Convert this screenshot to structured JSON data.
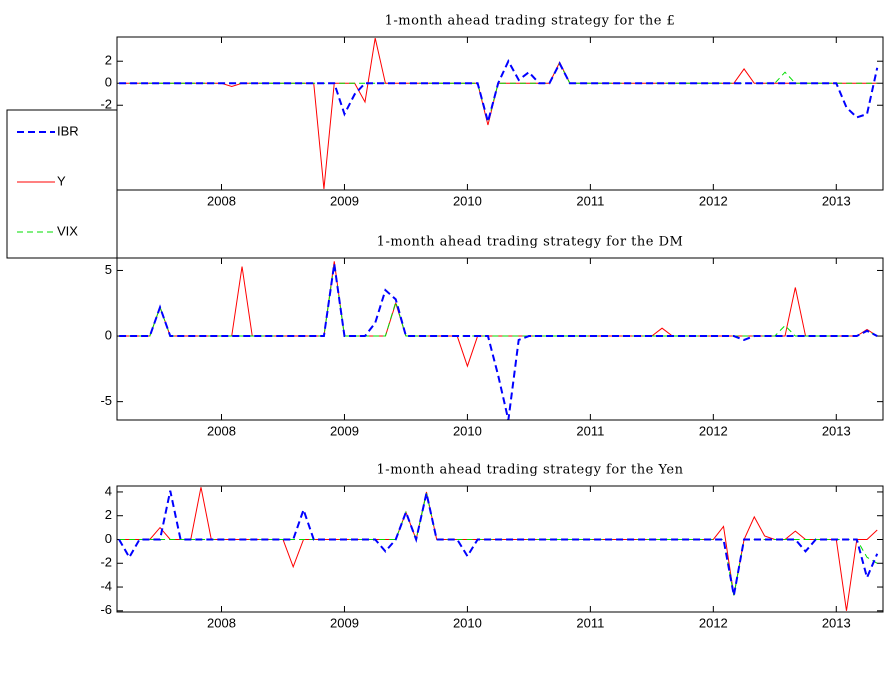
{
  "chart_data": [
    {
      "type": "line",
      "title": "1-month ahead trading strategy for the £",
      "x": [
        2007.167,
        2007.25,
        2007.333,
        2007.417,
        2007.5,
        2007.583,
        2007.667,
        2007.75,
        2007.833,
        2007.917,
        2008,
        2008.083,
        2008.167,
        2008.25,
        2008.333,
        2008.417,
        2008.5,
        2008.583,
        2008.667,
        2008.75,
        2008.833,
        2008.917,
        2009,
        2009.083,
        2009.167,
        2009.25,
        2009.333,
        2009.417,
        2009.5,
        2009.583,
        2009.667,
        2009.75,
        2009.833,
        2009.917,
        2010,
        2010.083,
        2010.167,
        2010.25,
        2010.333,
        2010.417,
        2010.5,
        2010.583,
        2010.667,
        2010.75,
        2010.833,
        2010.917,
        2011,
        2011.083,
        2011.167,
        2011.25,
        2011.333,
        2011.417,
        2011.5,
        2011.583,
        2011.667,
        2011.75,
        2011.833,
        2011.917,
        2012,
        2012.083,
        2012.167,
        2012.25,
        2012.333,
        2012.417,
        2012.5,
        2012.583,
        2012.667,
        2012.75,
        2012.833,
        2012.917,
        2013,
        2013.083,
        2013.167,
        2013.25,
        2013.333
      ],
      "xlim": [
        2007.15,
        2013.38
      ],
      "xticks": [
        2008,
        2009,
        2010,
        2011,
        2012,
        2013
      ],
      "ylim": [
        -9.7,
        4.2
      ],
      "yticks": [
        -2,
        0,
        2
      ],
      "legend": "left",
      "series": [
        {
          "name": "IBR",
          "color": "#0000ff",
          "dashed": true,
          "width": 2,
          "values": [
            0,
            0,
            0,
            0,
            0,
            0,
            0,
            0,
            0,
            0,
            0,
            0,
            0,
            0,
            0,
            0,
            0,
            0,
            0,
            0,
            0,
            0,
            -2.8,
            -1.0,
            0,
            0,
            0,
            0,
            0,
            0,
            0,
            0,
            0,
            0,
            0,
            0,
            -3.5,
            0,
            2.0,
            0.3,
            1.0,
            0,
            0,
            1.8,
            0,
            0,
            0,
            0,
            0,
            0,
            0,
            0,
            0,
            0,
            0,
            0,
            0,
            0,
            0,
            0,
            0,
            0,
            0,
            0,
            0,
            0,
            0,
            0,
            0,
            0,
            0,
            -2.2,
            -3.1,
            -2.8,
            1.4
          ]
        },
        {
          "name": "Y",
          "color": "#ff0000",
          "dashed": false,
          "width": 1,
          "values": [
            0,
            0,
            0,
            0,
            0,
            0,
            0,
            0,
            0,
            0,
            0,
            -0.3,
            0,
            0,
            0,
            0,
            0,
            0,
            0,
            0,
            -9.6,
            0,
            0,
            0,
            -1.7,
            4.1,
            0,
            0,
            0,
            0,
            0,
            0,
            0,
            0,
            0,
            0,
            -3.8,
            0,
            0,
            0,
            0,
            0,
            0,
            1.9,
            0,
            0,
            0,
            0,
            0,
            0,
            0,
            0,
            0,
            0,
            0,
            0,
            0,
            0,
            0,
            0,
            0,
            1.3,
            0,
            0,
            0,
            0,
            0,
            0,
            0,
            0,
            0,
            0,
            0,
            0,
            0
          ]
        },
        {
          "name": "VIX",
          "color": "#00dd00",
          "dashed": true,
          "width": 1,
          "values": [
            0,
            0,
            0,
            0,
            0,
            0,
            0,
            0,
            0,
            0,
            0,
            0,
            0,
            0,
            0,
            0,
            0,
            0,
            0,
            0,
            0,
            0,
            0,
            0,
            0,
            0,
            0,
            0,
            0,
            0,
            0,
            0,
            0,
            0,
            0,
            0,
            -3.5,
            0,
            0,
            0,
            0,
            0,
            0,
            1.8,
            0,
            0,
            0,
            0,
            0,
            0,
            0,
            0,
            0,
            0,
            0,
            0,
            0,
            0,
            0,
            0,
            0,
            0,
            0,
            0,
            0,
            1.0,
            0,
            0,
            0,
            0,
            0,
            0,
            0,
            0,
            0
          ]
        }
      ]
    },
    {
      "type": "line",
      "title": "1-month ahead trading strategy for the DM",
      "x": [
        2007.167,
        2007.25,
        2007.333,
        2007.417,
        2007.5,
        2007.583,
        2007.667,
        2007.75,
        2007.833,
        2007.917,
        2008,
        2008.083,
        2008.167,
        2008.25,
        2008.333,
        2008.417,
        2008.5,
        2008.583,
        2008.667,
        2008.75,
        2008.833,
        2008.917,
        2009,
        2009.083,
        2009.167,
        2009.25,
        2009.333,
        2009.417,
        2009.5,
        2009.583,
        2009.667,
        2009.75,
        2009.833,
        2009.917,
        2010,
        2010.083,
        2010.167,
        2010.25,
        2010.333,
        2010.417,
        2010.5,
        2010.583,
        2010.667,
        2010.75,
        2010.833,
        2010.917,
        2011,
        2011.083,
        2011.167,
        2011.25,
        2011.333,
        2011.417,
        2011.5,
        2011.583,
        2011.667,
        2011.75,
        2011.833,
        2011.917,
        2012,
        2012.083,
        2012.167,
        2012.25,
        2012.333,
        2012.417,
        2012.5,
        2012.583,
        2012.667,
        2012.75,
        2012.833,
        2012.917,
        2013,
        2013.083,
        2013.167,
        2013.25,
        2013.333
      ],
      "xlim": [
        2007.15,
        2013.38
      ],
      "xticks": [
        2008,
        2009,
        2010,
        2011,
        2012,
        2013
      ],
      "ylim": [
        -6.4,
        5.95
      ],
      "yticks": [
        -5,
        0,
        5
      ],
      "series": [
        {
          "name": "IBR",
          "color": "#0000ff",
          "dashed": true,
          "width": 2,
          "values": [
            0,
            0,
            0,
            0,
            2.2,
            0,
            0,
            0,
            0,
            0,
            0,
            0,
            0,
            0,
            0,
            0,
            0,
            0,
            0,
            0,
            0,
            5.5,
            0,
            0,
            0,
            1.0,
            3.5,
            2.8,
            0,
            0,
            0,
            0,
            0,
            0,
            0,
            0,
            0,
            -3.0,
            -6.4,
            -0.3,
            0,
            0,
            0,
            0,
            0,
            0,
            0,
            0,
            0,
            0,
            0,
            0,
            0,
            0,
            0,
            0,
            0,
            0,
            0,
            0,
            0,
            -0.3,
            0,
            0,
            0,
            0,
            0,
            0,
            0,
            0,
            0,
            0,
            0,
            0.4,
            0
          ]
        },
        {
          "name": "Y",
          "color": "#ff0000",
          "dashed": false,
          "width": 1,
          "values": [
            0,
            0,
            0,
            0,
            2.2,
            0,
            0,
            0,
            0,
            0,
            0,
            0,
            5.3,
            0,
            0,
            0,
            0,
            0,
            0,
            0,
            0,
            5.7,
            0,
            0,
            0,
            0,
            0,
            2.5,
            0,
            0,
            0,
            0,
            0,
            0,
            -2.3,
            0,
            0,
            0,
            0,
            0,
            0,
            0,
            0,
            0,
            0,
            0,
            0,
            0,
            0,
            0,
            0,
            0,
            0,
            0.6,
            0,
            0,
            0,
            0,
            0,
            0,
            0,
            0,
            0,
            0,
            0,
            0,
            3.7,
            0,
            0,
            0,
            0,
            0,
            0,
            0.5,
            0
          ]
        },
        {
          "name": "VIX",
          "color": "#00dd00",
          "dashed": true,
          "width": 1,
          "values": [
            0,
            0,
            0,
            0,
            2.2,
            0,
            0,
            0,
            0,
            0,
            0,
            0,
            0,
            0,
            0,
            0,
            0,
            0,
            0,
            0,
            0,
            5.5,
            0,
            0,
            0,
            0,
            0,
            2.6,
            0,
            0,
            0,
            0,
            0,
            0,
            0,
            0,
            0,
            0,
            0,
            0,
            0,
            0,
            0,
            0,
            0,
            0,
            0,
            0,
            0,
            0,
            0,
            0,
            0,
            0,
            0,
            0,
            0,
            0,
            0,
            0,
            0,
            0,
            0,
            0,
            0,
            0.8,
            0,
            0,
            0,
            0,
            0,
            0,
            0,
            0.4,
            0
          ]
        }
      ]
    },
    {
      "type": "line",
      "title": "1-month ahead trading strategy for the Yen",
      "x": [
        2007.167,
        2007.25,
        2007.333,
        2007.417,
        2007.5,
        2007.583,
        2007.667,
        2007.75,
        2007.833,
        2007.917,
        2008,
        2008.083,
        2008.167,
        2008.25,
        2008.333,
        2008.417,
        2008.5,
        2008.583,
        2008.667,
        2008.75,
        2008.833,
        2008.917,
        2009,
        2009.083,
        2009.167,
        2009.25,
        2009.333,
        2009.417,
        2009.5,
        2009.583,
        2009.667,
        2009.75,
        2009.833,
        2009.917,
        2010,
        2010.083,
        2010.167,
        2010.25,
        2010.333,
        2010.417,
        2010.5,
        2010.583,
        2010.667,
        2010.75,
        2010.833,
        2010.917,
        2011,
        2011.083,
        2011.167,
        2011.25,
        2011.333,
        2011.417,
        2011.5,
        2011.583,
        2011.667,
        2011.75,
        2011.833,
        2011.917,
        2012,
        2012.083,
        2012.167,
        2012.25,
        2012.333,
        2012.417,
        2012.5,
        2012.583,
        2012.667,
        2012.75,
        2012.833,
        2012.917,
        2013,
        2013.083,
        2013.167,
        2013.25,
        2013.333
      ],
      "xlim": [
        2007.15,
        2013.38
      ],
      "xticks": [
        2008,
        2009,
        2010,
        2011,
        2012,
        2013
      ],
      "ylim": [
        -6.1,
        4.5
      ],
      "yticks": [
        -6,
        -4,
        -2,
        0,
        2,
        4
      ],
      "series": [
        {
          "name": "IBR",
          "color": "#0000ff",
          "dashed": true,
          "width": 2,
          "values": [
            0,
            -1.5,
            0,
            0,
            0,
            4.1,
            0,
            0,
            0,
            0,
            0,
            0,
            0,
            0,
            0,
            0,
            0,
            0,
            2.5,
            0,
            0,
            0,
            0,
            0,
            0,
            0,
            -1.0,
            0,
            2.3,
            0,
            3.9,
            0,
            0,
            0,
            -1.4,
            0,
            0,
            0,
            0,
            0,
            0,
            0,
            0,
            0,
            0,
            0,
            0,
            0,
            0,
            0,
            0,
            0,
            0,
            0,
            0,
            0,
            0,
            0,
            0,
            0,
            -4.7,
            0,
            0,
            0,
            0,
            0,
            0,
            -1.0,
            0,
            0,
            0,
            0,
            0,
            -3.2,
            -1.2
          ]
        },
        {
          "name": "Y",
          "color": "#ff0000",
          "dashed": false,
          "width": 1,
          "values": [
            0,
            0,
            0,
            0,
            1.0,
            0,
            0,
            0,
            4.4,
            0,
            0,
            0,
            0,
            0,
            0,
            0,
            0,
            -2.3,
            0,
            0,
            0,
            0,
            0,
            0,
            0,
            0,
            0,
            0,
            2.3,
            0,
            4.0,
            0,
            0,
            0,
            0,
            0,
            0,
            0,
            0,
            0,
            0,
            0,
            0,
            0,
            0,
            0,
            0,
            0,
            0,
            0,
            0,
            0,
            0,
            0,
            0,
            0,
            0,
            0,
            0,
            1.1,
            -4.7,
            0,
            1.9,
            0.3,
            0,
            0,
            0.7,
            0,
            0,
            0,
            0,
            -6.0,
            0,
            0,
            0.8
          ]
        },
        {
          "name": "VIX",
          "color": "#00dd00",
          "dashed": true,
          "width": 1,
          "values": [
            0,
            0,
            0,
            0,
            0,
            0,
            0,
            0,
            0,
            0,
            0,
            0,
            0,
            0,
            0,
            0,
            0,
            0,
            0,
            0,
            0,
            0,
            0,
            0,
            0,
            0,
            0,
            0,
            2.3,
            0,
            3.9,
            0,
            0,
            0,
            0,
            0,
            0,
            0,
            0,
            0,
            0,
            0,
            0,
            0,
            0,
            0,
            0,
            0,
            0,
            0,
            0,
            0,
            0,
            0,
            0,
            0,
            0,
            0,
            0,
            0,
            -4.7,
            0,
            0,
            0,
            0,
            0,
            0,
            0,
            0,
            0,
            0,
            0,
            0,
            -1.5,
            -2.0
          ]
        }
      ]
    }
  ]
}
